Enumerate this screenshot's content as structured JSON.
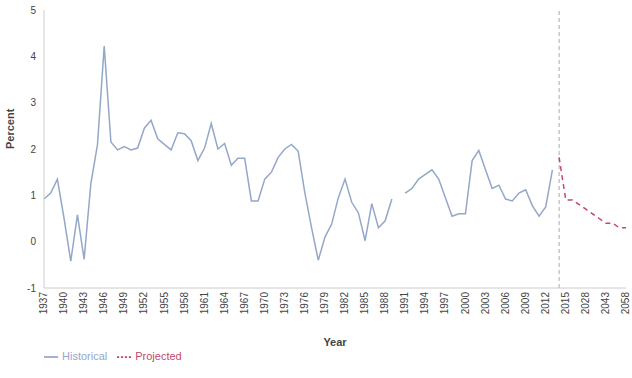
{
  "chart_data": {
    "type": "line",
    "x_label": "Year",
    "y_label": "Percent",
    "categories": [
      "1937",
      null,
      null,
      "1940",
      null,
      null,
      "1943",
      null,
      null,
      "1946",
      null,
      null,
      "1949",
      null,
      null,
      "1952",
      null,
      null,
      "1955",
      null,
      null,
      "1958",
      null,
      null,
      "1961",
      null,
      null,
      "1964",
      null,
      null,
      "1967",
      null,
      null,
      "1970",
      null,
      null,
      "1973",
      null,
      null,
      "1976",
      null,
      null,
      "1979",
      null,
      null,
      "1982",
      null,
      null,
      "1985",
      null,
      null,
      "1988",
      null,
      null,
      "1991",
      null,
      null,
      "1994",
      null,
      null,
      "1997",
      null,
      null,
      "2000",
      null,
      null,
      "2003",
      null,
      null,
      "2006",
      null,
      null,
      "2009",
      null,
      null,
      "2012",
      null,
      null,
      "2015",
      null,
      null,
      "2028",
      null,
      null,
      "2043",
      null,
      null,
      "2058"
    ],
    "series": [
      {
        "name": "Historical",
        "color": "#94a7c9",
        "line_style": "solid",
        "values": [
          0.92,
          1.05,
          1.35,
          0.5,
          -0.42,
          0.58,
          -0.38,
          1.25,
          2.1,
          4.22,
          2.15,
          1.98,
          2.05,
          1.98,
          2.02,
          2.45,
          2.62,
          2.22,
          2.1,
          1.98,
          2.35,
          2.33,
          2.18,
          1.75,
          2.02,
          2.55,
          2.0,
          2.12,
          1.65,
          1.8,
          1.8,
          0.88,
          0.88,
          1.35,
          1.5,
          1.82,
          2.0,
          2.1,
          1.95,
          1.05,
          0.3,
          -0.4,
          0.1,
          0.38,
          0.95,
          1.35,
          0.85,
          0.62,
          0.02,
          0.82,
          0.3,
          0.45,
          0.92,
          null,
          1.05,
          1.15,
          1.35,
          1.45,
          1.55,
          1.35,
          0.95,
          0.55,
          0.6,
          0.6,
          1.75,
          1.97,
          1.55,
          1.15,
          1.22,
          0.92,
          0.88,
          1.05,
          1.12,
          0.78,
          0.55,
          0.75,
          1.55,
          null,
          null,
          null,
          null,
          null,
          null,
          null,
          null,
          null,
          null,
          null
        ]
      },
      {
        "name": "Projected",
        "color": "#c4486e",
        "line_style": "dashed",
        "values": [
          null,
          null,
          null,
          null,
          null,
          null,
          null,
          null,
          null,
          null,
          null,
          null,
          null,
          null,
          null,
          null,
          null,
          null,
          null,
          null,
          null,
          null,
          null,
          null,
          null,
          null,
          null,
          null,
          null,
          null,
          null,
          null,
          null,
          null,
          null,
          null,
          null,
          null,
          null,
          null,
          null,
          null,
          null,
          null,
          null,
          null,
          null,
          null,
          null,
          null,
          null,
          null,
          null,
          null,
          null,
          null,
          null,
          null,
          null,
          null,
          null,
          null,
          null,
          null,
          null,
          null,
          null,
          null,
          null,
          null,
          null,
          null,
          null,
          null,
          null,
          null,
          null,
          1.82,
          0.9,
          0.9,
          0.8,
          0.7,
          0.6,
          0.5,
          0.4,
          0.4,
          0.3,
          0.3
        ]
      }
    ],
    "ylim": [
      -1,
      5
    ],
    "yticks": [
      -1,
      0,
      1,
      2,
      3,
      4,
      5
    ],
    "grid": false,
    "legend": "bottom left"
  }
}
